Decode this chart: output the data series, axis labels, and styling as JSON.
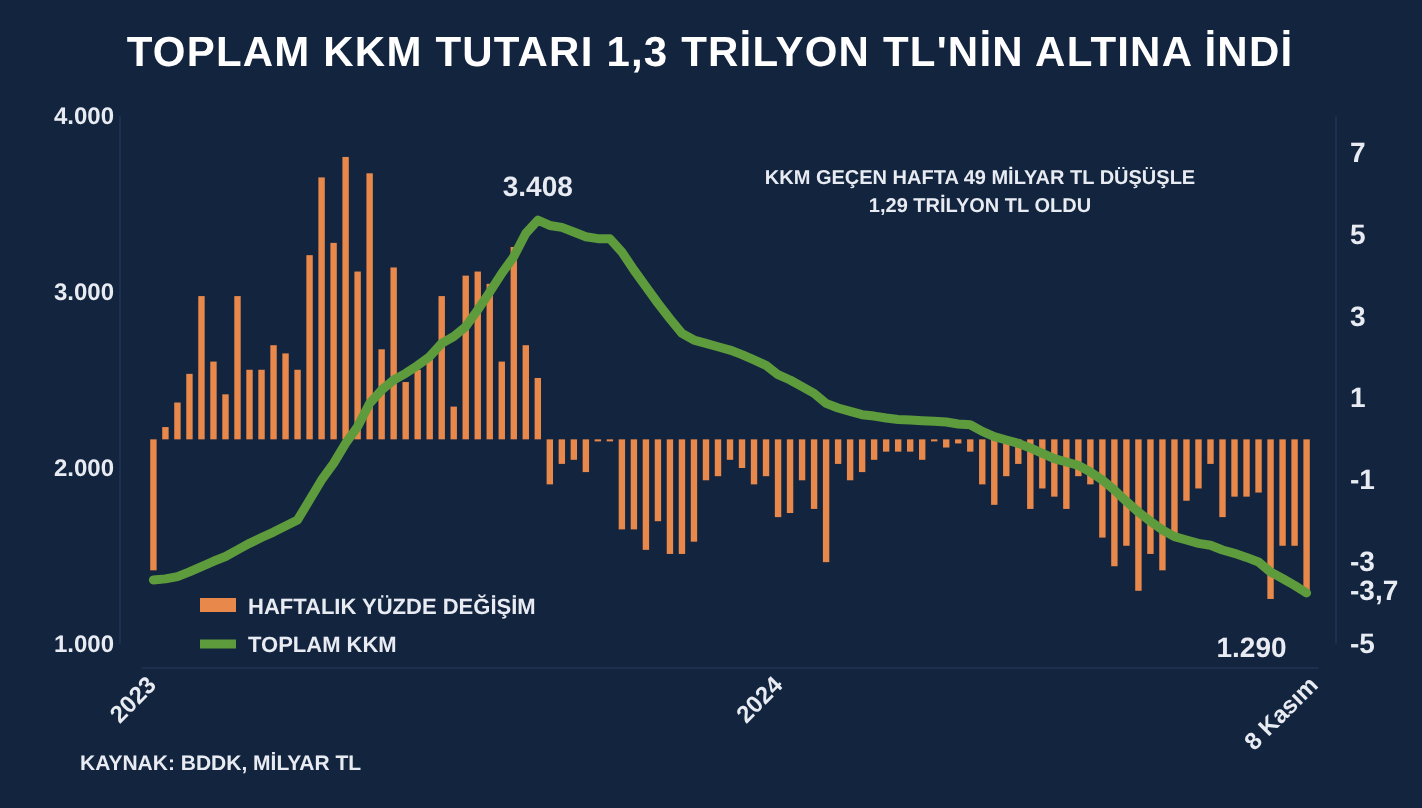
{
  "chart_data": {
    "type": "bar",
    "title": "TOPLAM KKM TUTARI 1,3 TRİLYON TL'NİN ALTINA İNDİ",
    "x": [
      "2023-01-06",
      "2023-01-13",
      "2023-01-20",
      "2023-01-27",
      "2023-02-03",
      "2023-02-10",
      "2023-02-17",
      "2023-02-24",
      "2023-03-03",
      "2023-03-10",
      "2023-03-17",
      "2023-03-24",
      "2023-03-31",
      "2023-04-07",
      "2023-04-14",
      "2023-04-21",
      "2023-04-28",
      "2023-05-05",
      "2023-05-12",
      "2023-05-19",
      "2023-05-26",
      "2023-06-02",
      "2023-06-09",
      "2023-06-16",
      "2023-06-23",
      "2023-06-30",
      "2023-07-07",
      "2023-07-14",
      "2023-07-21",
      "2023-07-28",
      "2023-08-04",
      "2023-08-11",
      "2023-08-18",
      "2023-08-25",
      "2023-09-01",
      "2023-09-08",
      "2023-09-15",
      "2023-09-22",
      "2023-09-29",
      "2023-10-06",
      "2023-10-13",
      "2023-10-20",
      "2023-10-27",
      "2023-11-03",
      "2023-11-10",
      "2023-11-17",
      "2023-11-24",
      "2023-12-01",
      "2023-12-08",
      "2023-12-15",
      "2023-12-22",
      "2023-12-29",
      "2024-01-05",
      "2024-01-12",
      "2024-01-19",
      "2024-01-26",
      "2024-02-02",
      "2024-02-09",
      "2024-02-16",
      "2024-02-23",
      "2024-03-01",
      "2024-03-08",
      "2024-03-15",
      "2024-03-22",
      "2024-03-29",
      "2024-04-05",
      "2024-04-12",
      "2024-04-19",
      "2024-04-26",
      "2024-05-03",
      "2024-05-10",
      "2024-05-17",
      "2024-05-24",
      "2024-05-31",
      "2024-06-07",
      "2024-06-14",
      "2024-06-21",
      "2024-06-28",
      "2024-07-05",
      "2024-07-12",
      "2024-07-19",
      "2024-07-26",
      "2024-08-02",
      "2024-08-09",
      "2024-08-16",
      "2024-08-23",
      "2024-08-30",
      "2024-09-06",
      "2024-09-13",
      "2024-09-20",
      "2024-09-27",
      "2024-10-04",
      "2024-10-11",
      "2024-10-18",
      "2024-10-25",
      "2024-11-01",
      "2024-11-08"
    ],
    "series": [
      {
        "name": "HAFTALIK YÜZDE DEĞİŞİM",
        "axis": "y2",
        "color": "#e8884a",
        "values": [
          -3.2,
          0.3,
          0.9,
          1.6,
          3.5,
          1.9,
          1.1,
          3.5,
          1.7,
          1.7,
          2.3,
          2.1,
          1.7,
          4.5,
          6.4,
          4.8,
          6.9,
          4.1,
          6.5,
          2.2,
          4.2,
          1.4,
          1.7,
          2.0,
          3.5,
          0.8,
          4.0,
          4.1,
          3.8,
          1.9,
          4.7,
          2.3,
          1.5,
          -1.1,
          -0.6,
          -0.5,
          -0.8,
          -0.05,
          -0.05,
          -2.2,
          -2.2,
          -2.7,
          -2.0,
          -2.8,
          -2.8,
          -2.5,
          -1.0,
          -0.9,
          -0.5,
          -0.7,
          -1.1,
          -0.9,
          -1.9,
          -1.8,
          -1.0,
          -1.7,
          -3.0,
          -0.6,
          -1.0,
          -0.8,
          -0.5,
          -0.3,
          -0.3,
          -0.3,
          -0.5,
          -0.05,
          -0.2,
          -0.1,
          -0.3,
          -1.1,
          -1.6,
          -0.9,
          -0.6,
          -1.7,
          -1.2,
          -1.4,
          -1.7,
          -0.9,
          -1.1,
          -2.4,
          -3.1,
          -2.6,
          -3.7,
          -2.8,
          -3.2,
          -2.3,
          -1.5,
          -1.2,
          -0.6,
          -1.9,
          -1.4,
          -1.4,
          -1.3,
          -3.9,
          -2.6,
          -2.6,
          -3.7
        ]
      },
      {
        "name": "TOPLAM KKM",
        "type": "line",
        "color": "#5e9b3c",
        "values": [
          1364,
          1370,
          1383,
          1410,
          1440,
          1470,
          1497,
          1535,
          1572,
          1605,
          1636,
          1670,
          1705,
          1818,
          1932,
          2026,
          2140,
          2235,
          2367,
          2443,
          2500,
          2538,
          2583,
          2633,
          2708,
          2747,
          2803,
          2898,
          3000,
          3106,
          3201,
          3333,
          3408,
          3378,
          3367,
          3341,
          3314,
          3303,
          3303,
          3227,
          3125,
          3030,
          2936,
          2848,
          2765,
          2727,
          2708,
          2689,
          2670,
          2644,
          2614,
          2583,
          2530,
          2500,
          2462,
          2424,
          2367,
          2341,
          2322,
          2303,
          2295,
          2284,
          2276,
          2273,
          2269,
          2265,
          2261,
          2250,
          2246,
          2208,
          2178,
          2159,
          2140,
          2114,
          2083,
          2053,
          2034,
          2015,
          1977,
          1932,
          1875,
          1810,
          1750,
          1697,
          1648,
          1610,
          1591,
          1572,
          1561,
          1534,
          1515,
          1492,
          1466,
          1409,
          1372,
          1333,
          1290
        ]
      }
    ],
    "xlim": [
      "2022-12-30",
      "2024-11-15"
    ],
    "xticks": [
      {
        "value": "2023-01-01",
        "label": "2023"
      },
      {
        "value": "2024-01-01",
        "label": "2024"
      },
      {
        "value": "2024-11-08",
        "label": "8 Kasım"
      }
    ],
    "ylim": [
      1000,
      4000
    ],
    "yticks": [
      {
        "value": 1000,
        "label": "1.000"
      },
      {
        "value": 2000,
        "label": "2.000"
      },
      {
        "value": 3000,
        "label": "3.000"
      },
      {
        "value": 4000,
        "label": "4.000"
      }
    ],
    "y2lim": [
      -5,
      7.9
    ],
    "y2ticks": [
      7,
      5,
      3,
      1,
      -1,
      -3,
      {
        "value": -3.7,
        "label": "-3,7"
      },
      -5
    ],
    "legend": "bottom left",
    "grid": false,
    "annotations": [
      "KKM GEÇEN HAFTA 49 MİLYAR TL DÜŞÜŞLE\n1,29 TRİLYON TL OLDU",
      "KAYNAK: BDDK, MİLYAR TL",
      {
        "text": "3.408",
        "x": "2023-08-18",
        "y": 3408
      },
      {
        "text": "1.290",
        "x": "2024-11-08",
        "y": 1290
      }
    ]
  }
}
